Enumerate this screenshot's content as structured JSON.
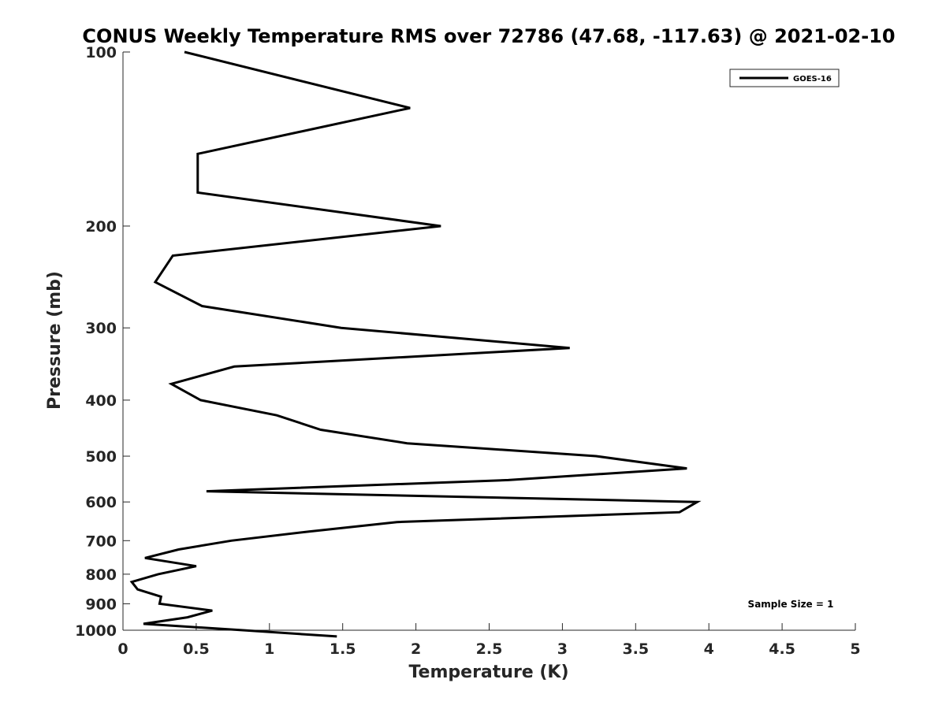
{
  "chart_data": {
    "type": "line",
    "title": "CONUS Weekly Temperature RMS over 72786 (47.68, -117.63) @ 2021-02-10",
    "xlabel": "Temperature (K)",
    "ylabel": "Pressure (mb)",
    "xlim": [
      0,
      5
    ],
    "ylim": [
      100,
      1000
    ],
    "y_scale": "log",
    "y_reversed": true,
    "grid": false,
    "legend_position": "top-right",
    "x_ticks": [
      "0",
      "0.5",
      "1",
      "1.5",
      "2",
      "2.5",
      "3",
      "3.5",
      "4",
      "4.5",
      "5"
    ],
    "y_ticks": [
      "100",
      "200",
      "300",
      "400",
      "500",
      "600",
      "700",
      "800",
      "900",
      "1000"
    ],
    "series": [
      {
        "name": "GOES-16",
        "color": "#000000",
        "points": [
          {
            "x": 0.42,
            "y": 100
          },
          {
            "x": 1.96,
            "y": 125
          },
          {
            "x": 0.51,
            "y": 150
          },
          {
            "x": 0.51,
            "y": 175
          },
          {
            "x": 2.17,
            "y": 200
          },
          {
            "x": 0.34,
            "y": 225
          },
          {
            "x": 0.22,
            "y": 250
          },
          {
            "x": 0.54,
            "y": 275
          },
          {
            "x": 1.49,
            "y": 300
          },
          {
            "x": 3.05,
            "y": 325
          },
          {
            "x": 0.76,
            "y": 350
          },
          {
            "x": 0.33,
            "y": 375
          },
          {
            "x": 0.53,
            "y": 400
          },
          {
            "x": 1.05,
            "y": 425
          },
          {
            "x": 1.35,
            "y": 450
          },
          {
            "x": 1.94,
            "y": 475
          },
          {
            "x": 3.23,
            "y": 500
          },
          {
            "x": 3.85,
            "y": 525
          },
          {
            "x": 2.63,
            "y": 550
          },
          {
            "x": 0.57,
            "y": 575
          },
          {
            "x": 3.92,
            "y": 600
          },
          {
            "x": 3.8,
            "y": 625
          },
          {
            "x": 1.87,
            "y": 650
          },
          {
            "x": 1.27,
            "y": 675
          },
          {
            "x": 0.74,
            "y": 700
          },
          {
            "x": 0.38,
            "y": 725
          },
          {
            "x": 0.15,
            "y": 750
          },
          {
            "x": 0.5,
            "y": 775
          },
          {
            "x": 0.24,
            "y": 800
          },
          {
            "x": 0.06,
            "y": 825
          },
          {
            "x": 0.1,
            "y": 850
          },
          {
            "x": 0.26,
            "y": 875
          },
          {
            "x": 0.25,
            "y": 900
          },
          {
            "x": 0.61,
            "y": 925
          },
          {
            "x": 0.44,
            "y": 950
          },
          {
            "x": 0.14,
            "y": 975
          },
          {
            "x": 0.82,
            "y": 1000
          },
          {
            "x": 1.46,
            "y": 1025
          }
        ]
      }
    ],
    "annotations": [
      {
        "text": "Sample Size = 1",
        "position": "bottom-right"
      }
    ]
  }
}
